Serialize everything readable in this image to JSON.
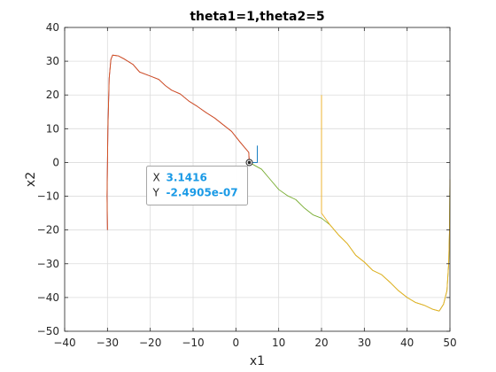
{
  "chart_data": {
    "type": "line",
    "title": "theta1=1,theta2=5",
    "xlabel": "x1",
    "ylabel": "x2",
    "xlim": [
      -40,
      50
    ],
    "ylim": [
      -50,
      40
    ],
    "xticks": [
      "−40",
      "−30",
      "−20",
      "−10",
      "0",
      "10",
      "20",
      "30",
      "40",
      "50"
    ],
    "yticks": [
      "−50",
      "−40",
      "−30",
      "−20",
      "−10",
      "0",
      "10",
      "20",
      "30",
      "40"
    ],
    "grid": true,
    "series": [
      {
        "color": "#7e2f8e",
        "points": [
          [
            -30,
            -20
          ],
          [
            -30.1,
            -10
          ],
          [
            -29.9,
            10
          ],
          [
            -29.6,
            25
          ],
          [
            -29.2,
            30.5
          ],
          [
            -28.8,
            31.8
          ],
          [
            -27.5,
            31.6
          ],
          [
            -26,
            30.6
          ],
          [
            -24,
            29
          ],
          [
            -22.5,
            26.8
          ],
          [
            -20,
            25.6
          ],
          [
            -18,
            24.6
          ],
          [
            -16.5,
            22.8
          ],
          [
            -15,
            21.4
          ],
          [
            -13,
            20.3
          ],
          [
            -11,
            18.2
          ],
          [
            -9,
            16.6
          ],
          [
            -7,
            14.8
          ],
          [
            -5,
            13.2
          ],
          [
            -3,
            11.2
          ],
          [
            -1,
            9.2
          ],
          [
            1,
            6
          ],
          [
            3,
            3
          ],
          [
            3.1416,
            0
          ]
        ]
      },
      {
        "color": "#d95319",
        "points": [
          [
            -30,
            -20
          ],
          [
            -30.1,
            -10
          ],
          [
            -29.9,
            10
          ],
          [
            -29.6,
            25
          ],
          [
            -29.2,
            30.5
          ],
          [
            -28.8,
            31.8
          ],
          [
            -27.5,
            31.6
          ],
          [
            -26,
            30.6
          ],
          [
            -24,
            29
          ],
          [
            -22.5,
            26.8
          ],
          [
            -20,
            25.6
          ],
          [
            -18,
            24.6
          ],
          [
            -16.5,
            22.8
          ],
          [
            -15,
            21.4
          ],
          [
            -13,
            20.3
          ],
          [
            -11,
            18.2
          ],
          [
            -9,
            16.6
          ],
          [
            -7,
            14.8
          ],
          [
            -5,
            13.2
          ],
          [
            -3,
            11.2
          ],
          [
            -1,
            9.2
          ],
          [
            1,
            6
          ],
          [
            3,
            3
          ],
          [
            3.1416,
            0
          ]
        ]
      },
      {
        "color": "#0072bd",
        "points": [
          [
            5,
            5
          ],
          [
            5,
            0
          ],
          [
            3.1416,
            0
          ]
        ]
      },
      {
        "color": "#77ac30",
        "points": [
          [
            3.1416,
            0
          ],
          [
            6,
            -2
          ],
          [
            8,
            -5
          ],
          [
            10,
            -8
          ],
          [
            12,
            -9.8
          ],
          [
            14,
            -11
          ],
          [
            16,
            -13.5
          ],
          [
            18,
            -15.5
          ],
          [
            20,
            -16.5
          ],
          [
            22,
            -18.5
          ],
          [
            24,
            -21.5
          ],
          [
            26,
            -24
          ],
          [
            28,
            -27.5
          ],
          [
            30,
            -29.5
          ],
          [
            32,
            -32
          ],
          [
            34,
            -33.2
          ],
          [
            36,
            -35.5
          ],
          [
            38,
            -38
          ],
          [
            40,
            -40
          ],
          [
            42,
            -41.5
          ],
          [
            44,
            -42.3
          ],
          [
            46,
            -43.5
          ],
          [
            47.5,
            -44
          ],
          [
            48.5,
            -42
          ],
          [
            49.3,
            -38
          ],
          [
            49.7,
            -30
          ],
          [
            49.9,
            -20
          ],
          [
            50,
            -5
          ]
        ]
      },
      {
        "color": "#edb120",
        "points": [
          [
            20,
            20
          ],
          [
            20,
            -15
          ],
          [
            22,
            -18.5
          ],
          [
            24,
            -21.5
          ],
          [
            26,
            -24
          ],
          [
            28,
            -27.5
          ],
          [
            30,
            -29.5
          ],
          [
            32,
            -32
          ],
          [
            34,
            -33.2
          ],
          [
            36,
            -35.5
          ],
          [
            38,
            -38
          ],
          [
            40,
            -40
          ],
          [
            42,
            -41.5
          ],
          [
            44,
            -42.3
          ],
          [
            46,
            -43.5
          ],
          [
            47.5,
            -44
          ],
          [
            48.5,
            -42
          ],
          [
            49.3,
            -38
          ],
          [
            49.7,
            -30
          ],
          [
            49.9,
            -20
          ],
          [
            50,
            -5
          ]
        ]
      }
    ],
    "datatip": {
      "point": [
        3.1416,
        -2.4905e-07
      ],
      "x_key": "X",
      "x_value": "3.1416",
      "y_key": "Y",
      "y_value": "-2.4905e-07"
    }
  }
}
